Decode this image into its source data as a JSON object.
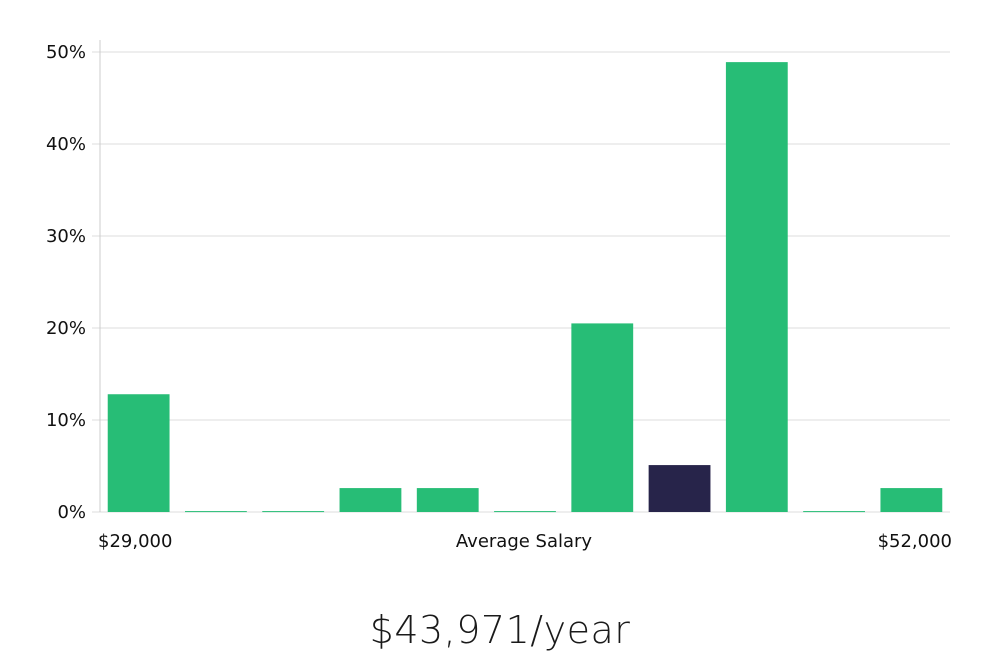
{
  "chart_data": {
    "type": "bar",
    "series": [
      {
        "values": [
          12.8,
          0.1,
          0.1,
          2.6,
          2.6,
          0.1,
          20.5,
          5.1,
          48.9,
          0.1,
          2.6
        ]
      }
    ],
    "highlight_index": 7,
    "ylim": [
      0,
      50
    ],
    "yticks": [
      "0%",
      "10%",
      "20%",
      "30%",
      "40%",
      "50%"
    ],
    "ytick_values": [
      0,
      10,
      20,
      30,
      40,
      50
    ],
    "x_min_label": "$29,000",
    "x_max_label": "$52,000",
    "xlabel": "Average Salary",
    "grid": true,
    "colors": {
      "bar": "#27bd76",
      "highlight": "#27244a",
      "grid": "#dddddd",
      "axis": "#cccccc"
    }
  },
  "summary": {
    "salary": "$43,971/year"
  }
}
